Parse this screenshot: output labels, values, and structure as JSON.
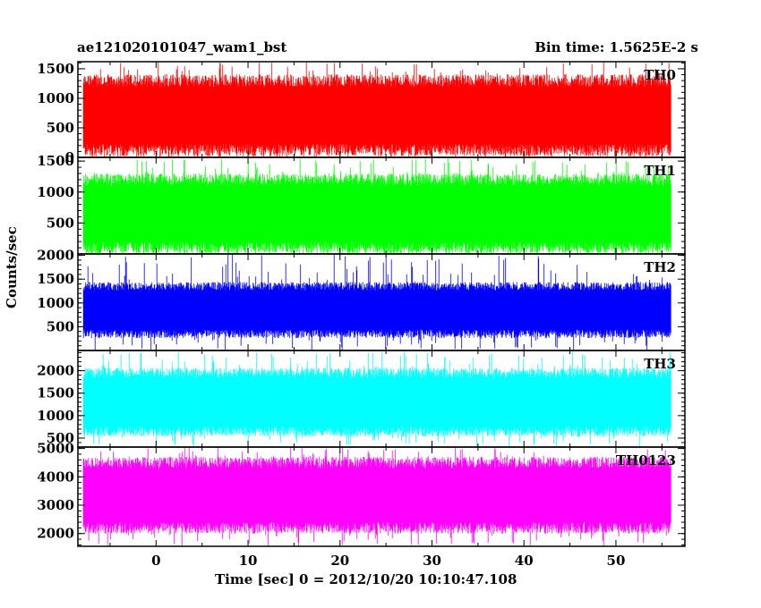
{
  "header": {
    "title": "ae121020101047_wam1_bst",
    "bin_time": "Bin time: 1.5625E-2 s"
  },
  "chart_data": {
    "type": "line",
    "xlabel": "Time [sec] 0 = 2012/10/20 10:10:47.108",
    "ylabel": "Counts/sec",
    "xlim": [
      -8.5,
      57.5
    ],
    "x_ticks": [
      0,
      10,
      20,
      30,
      40,
      50
    ],
    "x_tick_labels": [
      "0",
      "10",
      "20",
      "30",
      "40",
      "50"
    ],
    "data_x_range": [
      -7.9,
      56.0
    ],
    "bin_time_s": 0.015625,
    "panels": [
      {
        "name": "TH0",
        "color": "#ff0000",
        "ylim": [
          0,
          1620
        ],
        "y_ticks": [
          0,
          500,
          1000,
          1500
        ],
        "y_tick_labels": [
          "0",
          "500",
          "1000",
          "1500"
        ],
        "typical_range": [
          120,
          1300
        ],
        "min": 0,
        "max": 1620
      },
      {
        "name": "TH1",
        "color": "#00ff00",
        "ylim": [
          0,
          1560
        ],
        "y_ticks": [
          500,
          1000,
          1500
        ],
        "y_tick_labels": [
          "500",
          "1000",
          "1500"
        ],
        "typical_range": [
          100,
          1200
        ],
        "min": 0,
        "max": 1560
      },
      {
        "name": "TH2",
        "color": "#0000ff",
        "ylim": [
          0,
          2030
        ],
        "y_ticks": [
          500,
          1000,
          1500,
          2000
        ],
        "y_tick_labels": [
          "500",
          "1000",
          "1500",
          "2000"
        ],
        "typical_range": [
          350,
          1350
        ],
        "min": 0,
        "max": 2030
      },
      {
        "name": "TH3",
        "color": "#00ffff",
        "ylim": [
          300,
          2450
        ],
        "y_ticks": [
          500,
          1000,
          1500,
          2000
        ],
        "y_tick_labels": [
          "500",
          "1000",
          "1500",
          "2000"
        ],
        "typical_range": [
          650,
          1950
        ],
        "min": 300,
        "max": 2450
      },
      {
        "name": "TH0123",
        "color": "#ff00ff",
        "ylim": [
          1550,
          5050
        ],
        "y_ticks": [
          2000,
          3000,
          4000,
          5000
        ],
        "y_tick_labels": [
          "2000",
          "3000",
          "4000",
          "5000"
        ],
        "typical_range": [
          2200,
          4500
        ],
        "min": 1550,
        "max": 5050
      }
    ]
  }
}
